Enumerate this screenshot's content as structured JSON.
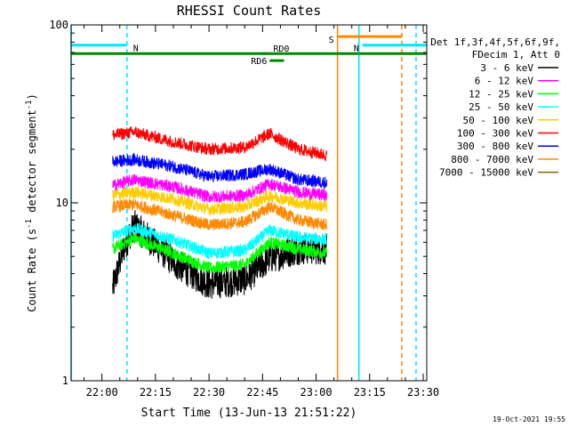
{
  "chart_data": {
    "type": "line",
    "title": "RHESSI Count Rates",
    "xlabel": "Start Time (13-Jun-13 21:51:22)",
    "ylabel_main": "Count Rate (s",
    "ylabel_sup1": "-1",
    "ylabel_mid": " detector segment",
    "ylabel_sup2": "-1",
    "ylabel_end": ")",
    "y_scale": "log",
    "ylim": [
      1,
      100
    ],
    "y_ticks": [
      {
        "value": 1,
        "label": "1"
      },
      {
        "value": 10,
        "label": "10"
      },
      {
        "value": 100,
        "label": "100"
      }
    ],
    "xlim": [
      "21:51:22",
      "23:31:00"
    ],
    "x_ticks": [
      "22:00",
      "22:15",
      "22:30",
      "22:45",
      "23:00",
      "23:15",
      "23:30"
    ],
    "legend_header": [
      "Det 1f,3f,4f,5f,6f,9f,",
      "FDecim 1, Att 0"
    ],
    "series": [
      {
        "name": "3 - 6 keV",
        "color": "#000000",
        "values": [
          [
            "22:03",
            3.3
          ],
          [
            "22:06",
            5.5
          ],
          [
            "22:09",
            7.5
          ],
          [
            "22:15",
            5.8
          ],
          [
            "22:21",
            4.5
          ],
          [
            "22:30",
            3.5
          ],
          [
            "22:40",
            3.7
          ],
          [
            "22:47",
            4.9
          ],
          [
            "22:55",
            5.5
          ],
          [
            "23:03",
            5.5
          ]
        ]
      },
      {
        "name": "6 - 12 keV",
        "color": "#ff00ff",
        "values": [
          [
            "22:03",
            12.5
          ],
          [
            "22:09",
            13.5
          ],
          [
            "22:20",
            12.3
          ],
          [
            "22:30",
            10.8
          ],
          [
            "22:40",
            11.0
          ],
          [
            "22:47",
            12.8
          ],
          [
            "22:55",
            11.5
          ],
          [
            "23:03",
            11.0
          ]
        ]
      },
      {
        "name": "12 - 25 keV",
        "color": "#00ff00",
        "values": [
          [
            "22:03",
            5.5
          ],
          [
            "22:09",
            6.3
          ],
          [
            "22:20",
            5.2
          ],
          [
            "22:30",
            4.3
          ],
          [
            "22:40",
            4.5
          ],
          [
            "22:47",
            6.0
          ],
          [
            "22:55",
            5.5
          ],
          [
            "23:03",
            5.2
          ]
        ]
      },
      {
        "name": "25 - 50 keV",
        "color": "#00ffff",
        "values": [
          [
            "22:03",
            6.5
          ],
          [
            "22:09",
            7.2
          ],
          [
            "22:20",
            6.2
          ],
          [
            "22:30",
            5.2
          ],
          [
            "22:40",
            5.4
          ],
          [
            "22:47",
            7.0
          ],
          [
            "22:55",
            6.4
          ],
          [
            "23:03",
            6.2
          ]
        ]
      },
      {
        "name": "50 - 100 keV",
        "color": "#ffcc00",
        "values": [
          [
            "22:03",
            11.0
          ],
          [
            "22:09",
            11.5
          ],
          [
            "22:20",
            10.5
          ],
          [
            "22:30",
            9.2
          ],
          [
            "22:40",
            9.5
          ],
          [
            "22:47",
            11.0
          ],
          [
            "22:55",
            10.0
          ],
          [
            "23:03",
            9.5
          ]
        ]
      },
      {
        "name": "100 - 300 keV",
        "color": "#ff0000",
        "values": [
          [
            "22:03",
            24.0
          ],
          [
            "22:09",
            25.0
          ],
          [
            "22:20",
            22.0
          ],
          [
            "22:30",
            20.0
          ],
          [
            "22:40",
            20.5
          ],
          [
            "22:47",
            24.5
          ],
          [
            "22:55",
            20.0
          ],
          [
            "23:03",
            18.5
          ]
        ]
      },
      {
        "name": "300 - 800 keV",
        "color": "#0000ff",
        "values": [
          [
            "22:03",
            17.0
          ],
          [
            "22:09",
            17.5
          ],
          [
            "22:20",
            16.0
          ],
          [
            "22:30",
            14.0
          ],
          [
            "22:40",
            14.5
          ],
          [
            "22:47",
            15.5
          ],
          [
            "22:55",
            13.5
          ],
          [
            "23:03",
            13.0
          ]
        ]
      },
      {
        "name": "800 - 7000 keV",
        "color": "#ff8800",
        "values": [
          [
            "22:03",
            9.5
          ],
          [
            "22:09",
            9.8
          ],
          [
            "22:20",
            8.5
          ],
          [
            "22:30",
            7.5
          ],
          [
            "22:40",
            7.8
          ],
          [
            "22:47",
            9.5
          ],
          [
            "22:55",
            8.0
          ],
          [
            "23:03",
            7.5
          ]
        ]
      },
      {
        "name": "7000 - 15000 keV",
        "color": "#886600",
        "values": []
      }
    ],
    "annotations": [
      {
        "type": "hbar",
        "label": "N",
        "color": "#00e5ff",
        "x0": "21:51:22",
        "x1": "22:07",
        "y": 77
      },
      {
        "type": "hbar",
        "label": "N",
        "color": "#00e5ff",
        "x0": "23:13",
        "x1": "23:31",
        "y": 77
      },
      {
        "type": "hbar",
        "label": "S",
        "color": "#ff8800",
        "x0": "23:06",
        "x1": "23:24",
        "y": 86
      },
      {
        "type": "hbar",
        "label": "",
        "color": "#008800",
        "x0": "21:51:22",
        "x1": "23:31",
        "y": 69
      },
      {
        "type": "hbar",
        "label": "RD0",
        "color": "#008800",
        "x0": "22:45",
        "x1": "22:46",
        "y": 69
      },
      {
        "type": "hbar",
        "label": "RD6",
        "color": "#008800",
        "x0": "22:47",
        "x1": "22:51",
        "y": 63
      },
      {
        "type": "vline",
        "color": "#00e5ff",
        "x": "21:51:22",
        "dash": false
      },
      {
        "type": "vline",
        "color": "#00e5ff",
        "x": "22:07",
        "dash": true
      },
      {
        "type": "vline",
        "color": "#ff8800",
        "x": "23:06",
        "dash": false
      },
      {
        "type": "vline",
        "color": "#00e5ff",
        "x": "23:12",
        "dash": false
      },
      {
        "type": "vline",
        "color": "#ff8800",
        "x": "23:24",
        "dash": true
      },
      {
        "type": "vline",
        "color": "#00e5ff",
        "x": "23:28",
        "dash": true
      }
    ],
    "footer_date": "19-Oct-2021 19:55",
    "grid": false,
    "legend_position": "right"
  }
}
